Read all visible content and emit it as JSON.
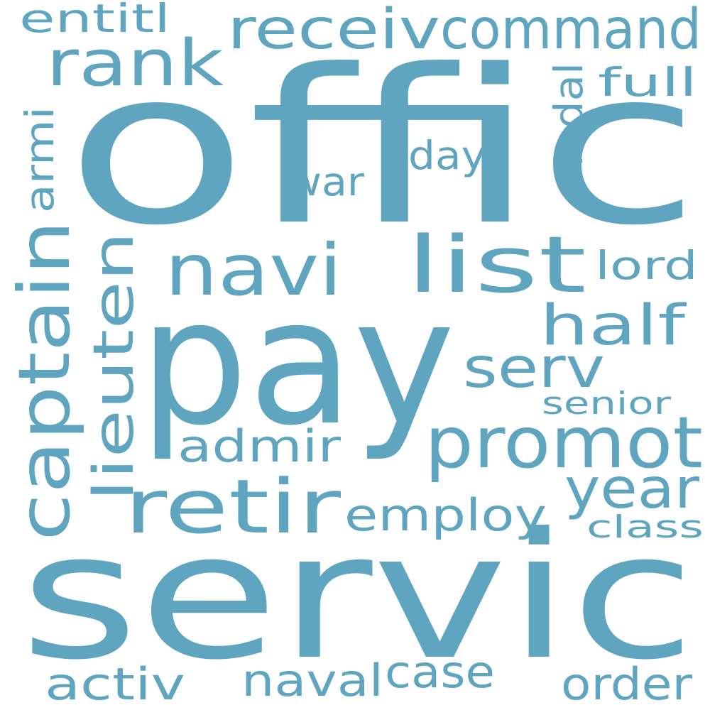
{
  "word_color": "#5fa5c0",
  "background": "#ffffff",
  "words": [
    {
      "id": "offic",
      "text": "offic"
    },
    {
      "id": "servic",
      "text": "servic"
    },
    {
      "id": "pay",
      "text": "pay"
    },
    {
      "id": "promot",
      "text": "promot"
    },
    {
      "id": "list",
      "text": "list"
    },
    {
      "id": "retir",
      "text": "retir"
    },
    {
      "id": "navi",
      "text": "navi"
    },
    {
      "id": "captain",
      "text": "captain"
    },
    {
      "id": "rank",
      "text": "rank"
    },
    {
      "id": "command",
      "text": "command"
    },
    {
      "id": "receiv",
      "text": "receiv"
    },
    {
      "id": "lieuten",
      "text": "lieuten"
    },
    {
      "id": "half",
      "text": "half"
    },
    {
      "id": "serv",
      "text": "serv"
    },
    {
      "id": "year",
      "text": "year"
    },
    {
      "id": "employ",
      "text": "employ"
    },
    {
      "id": "admir",
      "text": "admir"
    },
    {
      "id": "activ",
      "text": "activ"
    },
    {
      "id": "naval",
      "text": "naval"
    },
    {
      "id": "case",
      "text": "case"
    },
    {
      "id": "order",
      "text": "order"
    },
    {
      "id": "entitl",
      "text": "entitl"
    },
    {
      "id": "full",
      "text": "full"
    },
    {
      "id": "day",
      "text": "day"
    },
    {
      "id": "war",
      "text": "war"
    },
    {
      "id": "medal",
      "text": "medal"
    },
    {
      "id": "armi",
      "text": "armi"
    },
    {
      "id": "lord",
      "text": "lord"
    },
    {
      "id": "senior",
      "text": "senior"
    },
    {
      "id": "class",
      "text": "class"
    }
  ]
}
